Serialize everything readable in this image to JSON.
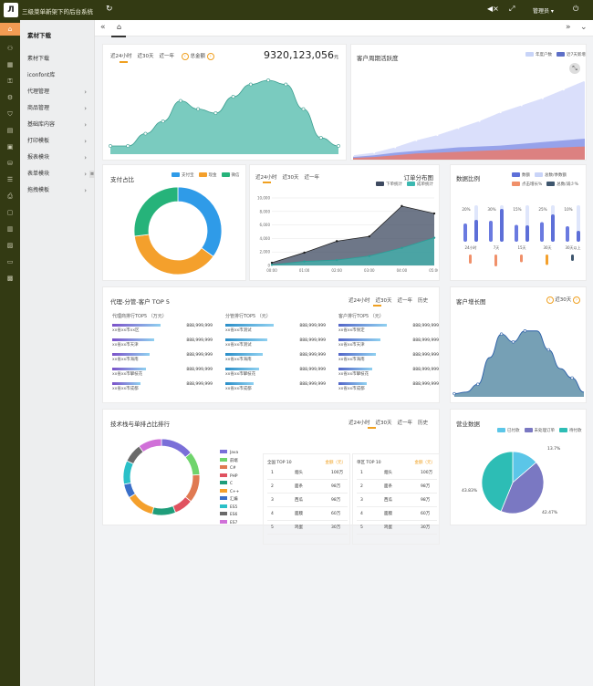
{
  "app": {
    "logo": "Л",
    "title": "三级菜单新架下的后台系统",
    "admin": "管理员 ▾"
  },
  "sidebar": {
    "header": "素材下载",
    "items": [
      {
        "label": "素材下载",
        "arrow": ""
      },
      {
        "label": "iconfont库",
        "arrow": ""
      },
      {
        "label": "代理管理",
        "arrow": "›"
      },
      {
        "label": "商品管理",
        "arrow": "›"
      },
      {
        "label": "基础库内容",
        "arrow": "›"
      },
      {
        "label": "打印模板",
        "arrow": "›"
      },
      {
        "label": "报表模块",
        "arrow": "›"
      },
      {
        "label": "表单模块",
        "arrow": "›"
      },
      {
        "label": "拖拽模板",
        "arrow": "›"
      }
    ]
  },
  "nav_icons": [
    "home-icon",
    "org-icon",
    "chart-icon",
    "key-icon",
    "gear-icon",
    "tag-icon",
    "grid-icon",
    "box-icon",
    "db-icon",
    "list-icon",
    "print-icon",
    "doc-icon",
    "calc-icon",
    "chart2-icon",
    "screen-icon",
    "image-icon"
  ],
  "tabs": {
    "home_icon": "⌂",
    "prev": "«",
    "next": "»",
    "dropdown": "⌄"
  },
  "fund": {
    "switches": [
      "近24小时",
      "近30天",
      "近一年"
    ],
    "label": "总金额",
    "amount": "9320,123,056",
    "unit": "元",
    "chart_data": {
      "type": "area",
      "x": [
        0,
        1,
        2,
        3,
        4,
        5,
        6,
        7,
        8,
        9,
        10,
        11,
        12,
        13
      ],
      "values": [
        2,
        2,
        5,
        8,
        13,
        11,
        10,
        14,
        17,
        18,
        17,
        11,
        4,
        2
      ],
      "ylim": [
        0,
        20
      ]
    }
  },
  "cycle": {
    "title": "客户周期活跃度",
    "legend": [
      "年度户数",
      "近7天新增"
    ],
    "colors": [
      "#c8d4f8",
      "#5d6fc7"
    ],
    "chart_data": {
      "type": "area",
      "series": [
        {
          "name": "",
          "values": [
            5,
            8,
            14,
            22,
            28,
            36,
            44,
            54,
            62,
            70,
            80,
            90
          ],
          "color": "#d6dcfb"
        },
        {
          "name": "",
          "values": [
            3,
            5,
            8,
            10,
            12,
            14,
            15,
            16,
            18,
            20,
            22,
            24
          ],
          "color": "#8a98e6"
        },
        {
          "name": "",
          "values": [
            2,
            3,
            5,
            7,
            8,
            9,
            10,
            11,
            12,
            13,
            14,
            15
          ],
          "color": "#e97b6f"
        }
      ],
      "ylim": [
        0,
        100
      ]
    }
  },
  "pay": {
    "title": "支付占比",
    "legend": [
      "支付宝",
      "现金",
      "微信"
    ],
    "chart_data": {
      "type": "pie",
      "labels": [
        "支付宝",
        "现金",
        "微信"
      ],
      "values": [
        35,
        38,
        27
      ],
      "colors": [
        "#2f9be8",
        "#f4a02c",
        "#26b37a"
      ]
    }
  },
  "orders": {
    "switches": [
      "近24小时",
      "近30天",
      "近一年"
    ],
    "title": "订单分布图",
    "legend": [
      "下单统计",
      "成单统计"
    ],
    "chart_data": {
      "type": "area",
      "x": [
        "00:00",
        "01:00",
        "02:00",
        "03:00",
        "04:00",
        "05:00"
      ],
      "series": [
        {
          "name": "下单统计",
          "values": [
            400,
            1900,
            3600,
            4300,
            8800,
            7700
          ],
          "color": "#3e4a60"
        },
        {
          "name": "成单统计",
          "values": [
            100,
            600,
            800,
            1400,
            2600,
            4100
          ],
          "color": "#3cb8b0"
        }
      ],
      "yticks": [
        "0",
        "2,000",
        "4,000",
        "6,000",
        "8,000",
        "10,000"
      ],
      "ylim": [
        0,
        10000
      ]
    }
  },
  "ratio": {
    "title": "数据比例",
    "legend": [
      "数额",
      "总数/季数额",
      "点击增长%",
      "总数/减少%"
    ],
    "legend_colors": [
      "#5d6fd8",
      "#c9d4f8",
      "#f0906a",
      "#3e566e"
    ],
    "chart_data": {
      "type": "bar",
      "categories": [
        "24小时",
        "7天",
        "15天",
        "30天",
        "30天以上"
      ],
      "labels": [
        "20%",
        "30%",
        "15%",
        "25%",
        "10%"
      ],
      "values": [
        20,
        30,
        15,
        25,
        10
      ]
    }
  },
  "rank": {
    "title": "代理-分管-客户 TOP 5",
    "switches": [
      "近24小时",
      "近30天",
      "近一年",
      "历史"
    ],
    "cols": [
      {
        "head": "代理商排行TOP5 （万元）",
        "color": "#7b52c9",
        "items": [
          "xx省xx市xx区",
          "xx省xx市天津",
          "xx省xx市海南",
          "xx省xx市攀枝花",
          "xx省xx市成都"
        ]
      },
      {
        "head": "分管排行TOP5 （元）",
        "color": "#2a8ec8",
        "items": [
          "xx省xx市测试",
          "xx省xx市测试",
          "xx省xx市海南",
          "xx省xx市攀枝花",
          "xx省xx市成都"
        ]
      },
      {
        "head": "客户排行TOP5 （元）",
        "color": "#5366c8",
        "items": [
          "xx省xx市保定",
          "xx省xx市天津",
          "xx省xx市海南",
          "xx省xx市攀枝花",
          "xx省xx市成都"
        ]
      }
    ],
    "value": "888,999,999"
  },
  "growth": {
    "title": "客户增长图",
    "switch": "近30天",
    "chart_data": {
      "type": "area",
      "values": [
        2,
        3,
        8,
        25,
        40,
        35,
        42,
        42,
        30,
        18,
        12,
        3
      ],
      "ylim": [
        0,
        50
      ]
    }
  },
  "tech": {
    "title": "技术栈与单排占比排行",
    "switches": [
      "近24小时",
      "近30天",
      "近一年",
      "历史"
    ],
    "legend": [
      "Java",
      "前端",
      "C#",
      "PHP",
      "C",
      "C++",
      "汇编",
      "ES5",
      "ES6",
      "ES7"
    ],
    "chart_data": {
      "type": "pie",
      "labels": [
        "Java",
        "前端",
        "C#",
        "PHP",
        "C",
        "C++",
        "汇编",
        "ES5",
        "ES6",
        "ES7"
      ],
      "values": [
        14,
        10,
        12,
        8,
        10,
        12,
        6,
        10,
        8,
        10
      ],
      "colors": [
        "#7a6fd8",
        "#6fd46c",
        "#e07a52",
        "#e05260",
        "#1f9d7a",
        "#f4a02c",
        "#3a6fc8",
        "#2ac0c8",
        "#6a6a6a",
        "#d070d8"
      ]
    },
    "tables": [
      {
        "title": "全国 TOP 10",
        "sub": "金额（元）",
        "rows": [
          [
            "1",
            "烟头",
            "100万"
          ],
          [
            "2",
            "面条",
            "98万"
          ],
          [
            "3",
            "西瓜",
            "98万"
          ],
          [
            "4",
            "面膜",
            "60万"
          ],
          [
            "5",
            "鸡蛋",
            "30万"
          ]
        ]
      },
      {
        "title": "单区 TOP 10",
        "sub": "金额（元）",
        "rows": [
          [
            "1",
            "烟头",
            "100万"
          ],
          [
            "2",
            "面条",
            "98万"
          ],
          [
            "3",
            "西瓜",
            "98万"
          ],
          [
            "4",
            "面膜",
            "60万"
          ],
          [
            "5",
            "鸡蛋",
            "30万"
          ]
        ]
      }
    ]
  },
  "biz": {
    "title": "营业数据",
    "legend": [
      "已付款",
      "未处理订单",
      "待付款"
    ],
    "chart_data": {
      "type": "pie",
      "labels": [
        "已付款",
        "未处理订单",
        "待付款"
      ],
      "values": [
        13.7,
        42.47,
        43.83
      ],
      "display": [
        "13.7%",
        "42.47%",
        "43.83%"
      ],
      "colors": [
        "#5bc6e8",
        "#7a78c2",
        "#2dbdb5"
      ]
    }
  }
}
